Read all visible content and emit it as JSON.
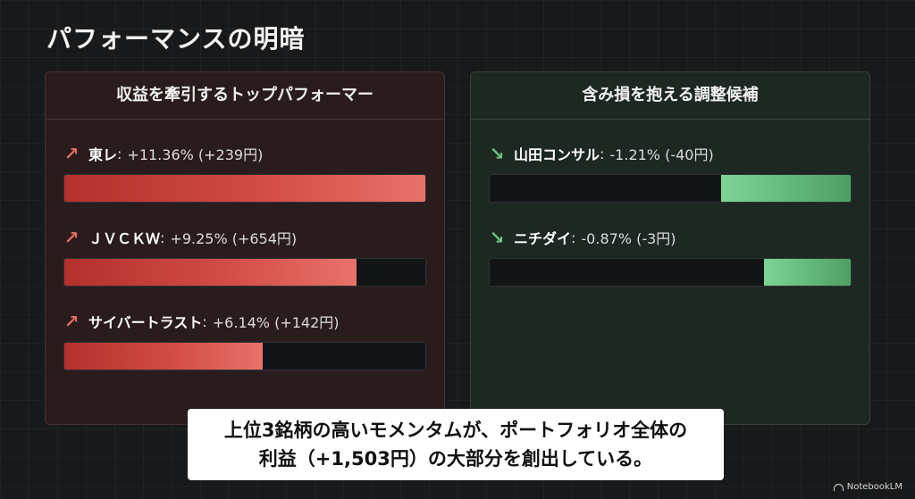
{
  "page": {
    "title": "パフォーマンスの明暗"
  },
  "left_panel": {
    "title": "収益を牽引するトップパフォーマー",
    "items": [
      {
        "icon": "trend-up-arrow-icon",
        "name": "東レ",
        "change": "+11.36% (+239円)",
        "progress": 1.0
      },
      {
        "icon": "trend-up-arrow-icon",
        "name": "ＪＶＣＫＷ",
        "change": "+9.25% (+654円)",
        "progress": 0.81
      },
      {
        "icon": "trend-up-arrow-icon",
        "name": "サイバートラスト",
        "change": "+6.14% (+142円)",
        "progress": 0.55
      }
    ]
  },
  "right_panel": {
    "title": "含み損を抱える調整候補",
    "items": [
      {
        "icon": "trend-down-arrow-icon",
        "name": "山田コンサル",
        "change": "-1.21% (-40円)",
        "progress": 0.36
      },
      {
        "icon": "trend-down-arrow-icon",
        "name": "ニチダイ",
        "change": "-0.87% (-3円)",
        "progress": 0.24
      }
    ]
  },
  "caption": {
    "line1": "上位3銘柄の高いモメンタムが、ポートフォリオ全体の",
    "line2": "利益（+1,503円）の大部分を創出している。"
  },
  "brand": {
    "name": "NotebookLM"
  },
  "colors": {
    "gain": "#e36a62",
    "loss": "#6cc47e"
  }
}
